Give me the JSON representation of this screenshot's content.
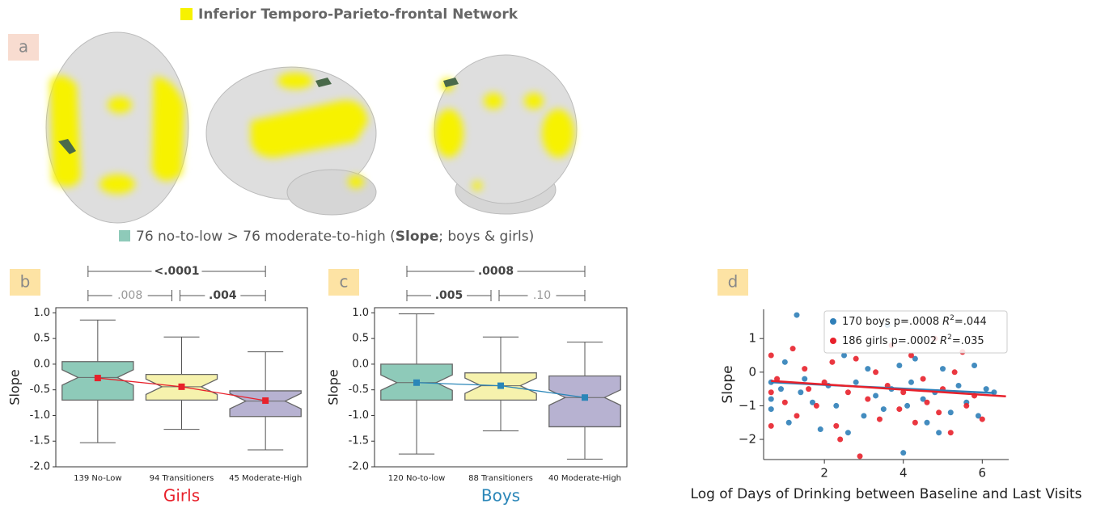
{
  "figure": {
    "network_label": "Inferior Temporo-Parieto-frontal Network",
    "panel_a": "a",
    "caption_parts": [
      "76 no-to-low > 76 moderate-to-high (",
      "Slope",
      "; boys & girls)"
    ]
  },
  "chart_data": [
    {
      "type": "box",
      "panel": "b",
      "subtitle": "Girls",
      "subtitle_color": "#e8212b",
      "ylabel": "Slope",
      "categories": [
        "139 No-Low",
        "94 Transitioners",
        "45 Moderate-High"
      ],
      "colors": [
        "#8ecab9",
        "#f6f2ad",
        "#b7b2d1"
      ],
      "mean_color": "#e8212b",
      "stats": [
        {
          "min": -1.53,
          "q1": -0.7,
          "median": -0.26,
          "q3": 0.05,
          "max": 0.86,
          "mean": -0.27
        },
        {
          "min": -1.27,
          "q1": -0.7,
          "median": -0.44,
          "q3": -0.2,
          "max": 0.53,
          "mean": -0.44
        },
        {
          "min": -1.67,
          "q1": -1.02,
          "median": -0.72,
          "q3": -0.52,
          "max": 0.24,
          "mean": -0.71
        }
      ],
      "ylim": [
        -2.0,
        1.1
      ],
      "yticks": [
        {
          "value": -2,
          "label": "-2.0"
        },
        -1.5,
        {
          "value": -1,
          "label": "-1.0"
        },
        -0.5,
        {
          "value": 0,
          "label": "0.0"
        },
        0.5,
        {
          "value": 1,
          "label": "1.0"
        }
      ],
      "brackets": [
        {
          "label": "<.0001",
          "bold": true
        },
        {
          "label": ".008",
          "bold": false
        },
        {
          "label": ".004",
          "bold": true
        }
      ]
    },
    {
      "type": "box",
      "panel": "c",
      "subtitle": "Boys",
      "subtitle_color": "#2a86b8",
      "ylabel": "Slope",
      "categories": [
        "120 No-to-low",
        "88 Transitioners",
        "40 Moderate-High"
      ],
      "colors": [
        "#8ecab9",
        "#f6f2ad",
        "#b7b2d1"
      ],
      "mean_color": "#2a86b8",
      "stats": [
        {
          "min": -1.75,
          "q1": -0.7,
          "median": -0.36,
          "q3": 0.0,
          "max": 0.98,
          "mean": -0.36
        },
        {
          "min": -1.3,
          "q1": -0.7,
          "median": -0.42,
          "q3": -0.17,
          "max": 0.53,
          "mean": -0.42
        },
        {
          "min": -1.85,
          "q1": -1.22,
          "median": -0.65,
          "q3": -0.23,
          "max": 0.43,
          "mean": -0.65
        }
      ],
      "ylim": [
        -2.0,
        1.1
      ],
      "yticks": [
        {
          "value": -2,
          "label": "-2.0"
        },
        -1.5,
        {
          "value": -1,
          "label": "-1.0"
        },
        -0.5,
        {
          "value": 0,
          "label": "0.0"
        },
        0.5,
        {
          "value": 1,
          "label": "1.0"
        }
      ],
      "brackets": [
        {
          "label": ".0008",
          "bold": true
        },
        {
          "label": ".005",
          "bold": true
        },
        {
          "label": ".10",
          "bold": false
        }
      ]
    },
    {
      "type": "scatter",
      "panel": "d",
      "xlabel": "Log of Days of Drinking between Baseline and Last Visits",
      "ylabel": "Slope",
      "xlim": [
        0.46,
        6.67
      ],
      "ylim": [
        -2.6,
        1.87
      ],
      "xticks": [
        2,
        4,
        6
      ],
      "yticks": [
        {
          "value": -2,
          "label": "−2"
        },
        {
          "value": -1,
          "label": "−1"
        },
        0,
        1
      ],
      "legend": "upper right",
      "stat_symbol": "R",
      "stat_exponent": "2",
      "series": [
        {
          "name": "170 boys p=.0008",
          "stat": "=.044",
          "color": "#2f7fb8",
          "x": [
            0.65,
            0.65,
            0.65,
            0.9,
            1.0,
            1.1,
            1.3,
            1.4,
            1.5,
            1.7,
            1.9,
            2.1,
            2.3,
            2.5,
            2.6,
            2.8,
            3.0,
            3.1,
            3.3,
            3.5,
            3.6,
            3.7,
            3.9,
            4.0,
            4.1,
            4.2,
            4.3,
            4.5,
            4.6,
            4.8,
            4.9,
            5.0,
            5.2,
            5.4,
            5.6,
            5.8,
            5.9,
            6.1,
            6.3
          ],
          "y": [
            -0.3,
            -0.8,
            -1.1,
            -0.5,
            0.3,
            -1.5,
            1.7,
            -0.6,
            -0.2,
            -0.9,
            -1.7,
            -0.4,
            -1.0,
            0.5,
            -1.8,
            -0.3,
            -1.3,
            0.1,
            -0.7,
            -1.1,
            1.4,
            -0.5,
            0.2,
            -2.4,
            -1.0,
            -0.3,
            0.4,
            -0.8,
            -1.5,
            -0.6,
            -1.8,
            0.1,
            -1.2,
            -0.4,
            -0.9,
            0.2,
            -1.3,
            -0.5,
            -0.6
          ],
          "fit": {
            "x": [
              0.65,
              6.3
            ],
            "y": [
              -0.3,
              -0.62
            ]
          }
        },
        {
          "name": "186 girls p=.0002",
          "stat": "=.035",
          "color": "#e8212b",
          "x": [
            0.65,
            0.65,
            0.65,
            0.8,
            1.0,
            1.2,
            1.3,
            1.5,
            1.6,
            1.8,
            2.0,
            2.2,
            2.3,
            2.4,
            2.6,
            2.8,
            2.9,
            3.1,
            3.3,
            3.4,
            3.6,
            3.7,
            3.9,
            4.0,
            4.2,
            4.3,
            4.5,
            4.6,
            4.8,
            4.9,
            5.0,
            5.2,
            5.3,
            5.5,
            5.6,
            5.8,
            6.0
          ],
          "y": [
            0.5,
            -0.6,
            -1.6,
            -0.2,
            -0.9,
            0.7,
            -1.3,
            0.1,
            -0.5,
            -1.0,
            -0.3,
            0.3,
            -1.6,
            -2.0,
            -0.6,
            0.4,
            -2.5,
            -0.8,
            0.0,
            -1.4,
            -0.4,
            0.8,
            -1.1,
            -0.6,
            0.5,
            -1.5,
            -0.2,
            -0.9,
            1.0,
            -1.2,
            -0.5,
            -1.8,
            0.0,
            0.6,
            -1.0,
            -0.7,
            -1.4
          ],
          "fit": {
            "x": [
              0.65,
              6.6
            ],
            "y": [
              -0.26,
              -0.72
            ]
          }
        }
      ]
    }
  ]
}
